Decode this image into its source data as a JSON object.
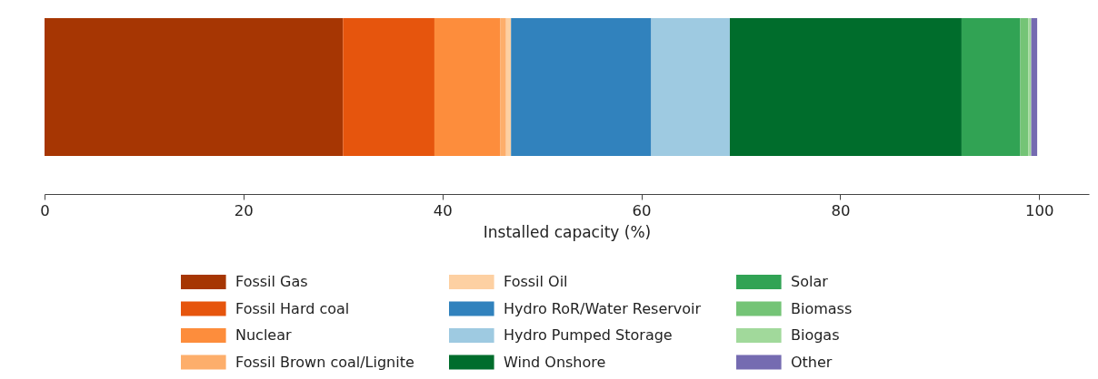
{
  "chart_data": {
    "type": "bar",
    "orientation": "horizontal",
    "stacked": true,
    "categories": [
      null
    ],
    "xlabel": "Installed capacity (%)",
    "xlim": [
      0,
      105
    ],
    "xticks": [
      0,
      20,
      40,
      60,
      80,
      100
    ],
    "grid": false,
    "legend": "bottom",
    "series": [
      {
        "name": "Fossil Gas",
        "color": "#a63603",
        "values": [
          30.0
        ]
      },
      {
        "name": "Fossil Hard coal",
        "color": "#e6550d",
        "values": [
          9.2
        ]
      },
      {
        "name": "Nuclear",
        "color": "#fd8d3c",
        "values": [
          6.6
        ]
      },
      {
        "name": "Fossil Brown coal/Lignite",
        "color": "#fdae6b",
        "values": [
          0.6
        ]
      },
      {
        "name": "Fossil Oil",
        "color": "#fdd0a2",
        "values": [
          0.5
        ]
      },
      {
        "name": "Hydro RoR/Water Reservoir",
        "color": "#3182bd",
        "values": [
          14.1
        ]
      },
      {
        "name": "Hydro Pumped Storage",
        "color": "#9ecae1",
        "values": [
          7.9
        ]
      },
      {
        "name": "Wind Onshore",
        "color": "#006d2c",
        "values": [
          23.3
        ]
      },
      {
        "name": "Solar",
        "color": "#31a354",
        "values": [
          5.9
        ]
      },
      {
        "name": "Biomass",
        "color": "#74c476",
        "values": [
          0.8
        ]
      },
      {
        "name": "Biogas",
        "color": "#a1d99b",
        "values": [
          0.3
        ]
      },
      {
        "name": "Other",
        "color": "#756bb1",
        "values": [
          0.6
        ]
      }
    ]
  }
}
